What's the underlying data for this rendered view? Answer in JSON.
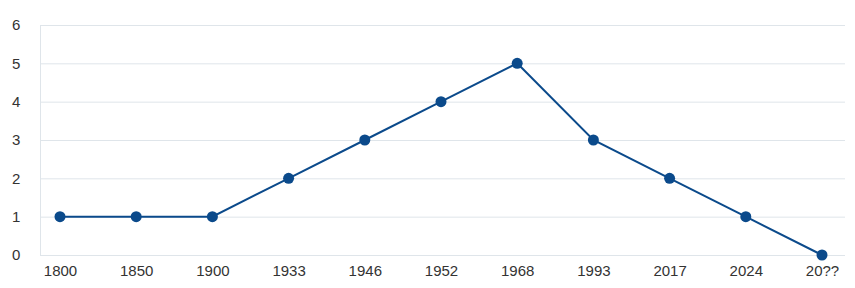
{
  "chart_data": {
    "type": "line",
    "categories": [
      "1800",
      "1850",
      "1900",
      "1933",
      "1946",
      "1952",
      "1968",
      "1993",
      "2017",
      "2024",
      "20??"
    ],
    "values": [
      1,
      1,
      1,
      2,
      3,
      4,
      5,
      3,
      2,
      1,
      0
    ],
    "color": "#0b4a8b",
    "marker": "circle",
    "ylim": [
      0,
      6
    ],
    "yticks": [
      0,
      1,
      2,
      3,
      4,
      5,
      6
    ],
    "grid": true
  }
}
